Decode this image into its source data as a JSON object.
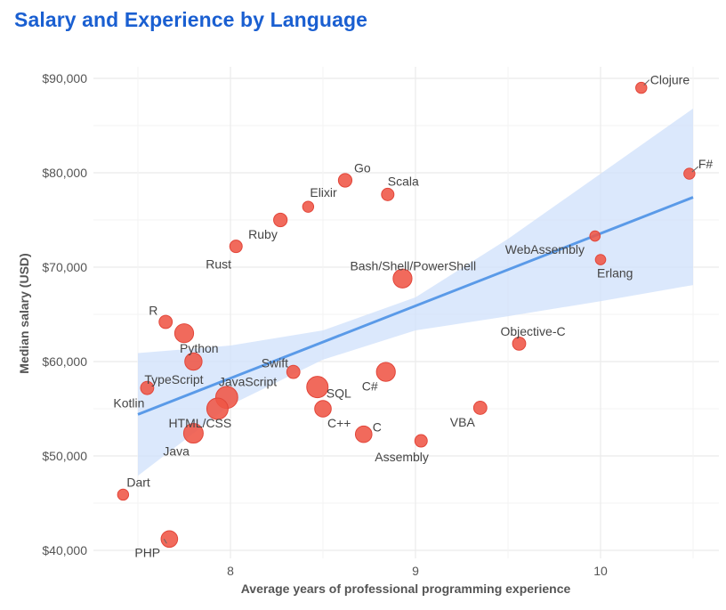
{
  "chart_data": {
    "type": "scatter",
    "title": "Salary and Experience by Language",
    "xlabel": "Average years of professional programming experience",
    "ylabel": "Median salary (USD)",
    "xlim": [
      7.37,
      10.63
    ],
    "ylim": [
      39000,
      92000
    ],
    "x_ticks": [
      {
        "value": 8,
        "label": "8"
      },
      {
        "value": 9,
        "label": "9"
      },
      {
        "value": 10,
        "label": "10"
      }
    ],
    "y_ticks": [
      {
        "value": 40000,
        "label": "$40,000"
      },
      {
        "value": 50000,
        "label": "$50,000"
      },
      {
        "value": 60000,
        "label": "$60,000"
      },
      {
        "value": 70000,
        "label": "$70,000"
      },
      {
        "value": 80000,
        "label": "$80,000"
      },
      {
        "value": 90000,
        "label": "$90,000"
      }
    ],
    "colors": {
      "point": "#ef5545",
      "point_stroke": "#e2463a",
      "trend": "#5a9ae8",
      "band": "#cfe0fb",
      "grid": "#ebebeb"
    },
    "trend": {
      "x": [
        7.5,
        10.5
      ],
      "y": [
        54400,
        77400
      ]
    },
    "band": {
      "x": [
        7.5,
        8.0,
        8.5,
        9.0,
        9.5,
        10.0,
        10.5
      ],
      "upper": [
        60900,
        61700,
        63300,
        66800,
        73000,
        79900,
        86800
      ],
      "lower": [
        47900,
        55400,
        60200,
        63300,
        64800,
        66400,
        68100
      ]
    },
    "points": [
      {
        "name": "Clojure",
        "x": 10.22,
        "y": 89000,
        "size": 1
      },
      {
        "name": "F#",
        "x": 10.48,
        "y": 79900,
        "size": 1
      },
      {
        "name": "Go",
        "x": 8.62,
        "y": 79200,
        "size": 2
      },
      {
        "name": "Scala",
        "x": 8.85,
        "y": 77700,
        "size": 1.5
      },
      {
        "name": "Elixir",
        "x": 8.42,
        "y": 76400,
        "size": 1
      },
      {
        "name": "Ruby",
        "x": 8.27,
        "y": 75000,
        "size": 2
      },
      {
        "name": "Rust",
        "x": 8.03,
        "y": 72200,
        "size": 1.5
      },
      {
        "name": "WebAssembly",
        "x": 9.97,
        "y": 73300,
        "size": 0.8
      },
      {
        "name": "Erlang",
        "x": 10.0,
        "y": 70800,
        "size": 0.8
      },
      {
        "name": "Bash/Shell/PowerShell",
        "x": 8.93,
        "y": 68800,
        "size": 5
      },
      {
        "name": "R",
        "x": 7.65,
        "y": 64200,
        "size": 1.8
      },
      {
        "name": "Python",
        "x": 7.75,
        "y": 63000,
        "size": 5
      },
      {
        "name": "Objective-C",
        "x": 9.56,
        "y": 61900,
        "size": 1.8
      },
      {
        "name": "TypeScript",
        "x": 7.8,
        "y": 60000,
        "size": 4
      },
      {
        "name": "Swift",
        "x": 8.34,
        "y": 58900,
        "size": 1.8
      },
      {
        "name": "C#",
        "x": 8.84,
        "y": 58900,
        "size": 5
      },
      {
        "name": "Kotlin",
        "x": 7.55,
        "y": 57200,
        "size": 1.8
      },
      {
        "name": "SQL",
        "x": 8.47,
        "y": 57300,
        "size": 7
      },
      {
        "name": "JavaScript",
        "x": 7.98,
        "y": 56200,
        "size": 7.5
      },
      {
        "name": "HTML/CSS",
        "x": 7.93,
        "y": 55000,
        "size": 7
      },
      {
        "name": "VBA",
        "x": 9.35,
        "y": 55100,
        "size": 1.8
      },
      {
        "name": "C++",
        "x": 8.5,
        "y": 55000,
        "size": 3.5
      },
      {
        "name": "C",
        "x": 8.72,
        "y": 52300,
        "size": 3.5
      },
      {
        "name": "Java",
        "x": 7.8,
        "y": 52400,
        "size": 5.5
      },
      {
        "name": "Assembly",
        "x": 9.03,
        "y": 51600,
        "size": 1.5
      },
      {
        "name": "Dart",
        "x": 7.42,
        "y": 45900,
        "size": 1
      },
      {
        "name": "PHP",
        "x": 7.67,
        "y": 41200,
        "size": 3.5
      }
    ]
  }
}
